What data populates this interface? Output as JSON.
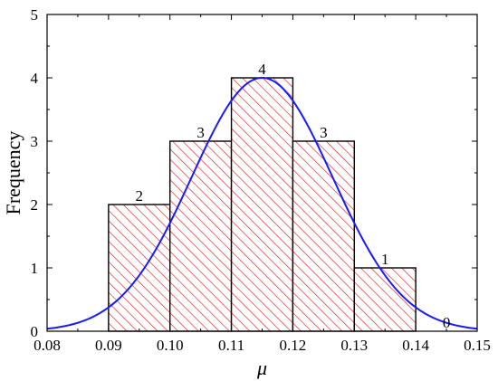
{
  "chart_data": {
    "type": "bar",
    "subtype": "histogram",
    "xlabel": "μ",
    "ylabel": "Frequency",
    "xlim": [
      0.08,
      0.15
    ],
    "ylim": [
      0,
      5
    ],
    "x_ticks": [
      "0.08",
      "0.09",
      "0.10",
      "0.11",
      "0.12",
      "0.13",
      "0.14",
      "0.15"
    ],
    "y_ticks": [
      "0",
      "1",
      "2",
      "3",
      "4",
      "5"
    ],
    "bins": [
      {
        "from": 0.09,
        "to": 0.1,
        "count": 2,
        "label": "2"
      },
      {
        "from": 0.1,
        "to": 0.11,
        "count": 3,
        "label": "3"
      },
      {
        "from": 0.11,
        "to": 0.12,
        "count": 4,
        "label": "4"
      },
      {
        "from": 0.12,
        "to": 0.13,
        "count": 3,
        "label": "3"
      },
      {
        "from": 0.13,
        "to": 0.14,
        "count": 1,
        "label": "1"
      },
      {
        "from": 0.14,
        "to": 0.15,
        "count": 0,
        "label": "0"
      }
    ],
    "fit_curve": {
      "type": "normal",
      "mean": 0.115,
      "sd": 0.0115,
      "peak": 4.0,
      "color": "#1a1aff"
    },
    "bar_hatch_color": "#e02020",
    "grid": false
  }
}
